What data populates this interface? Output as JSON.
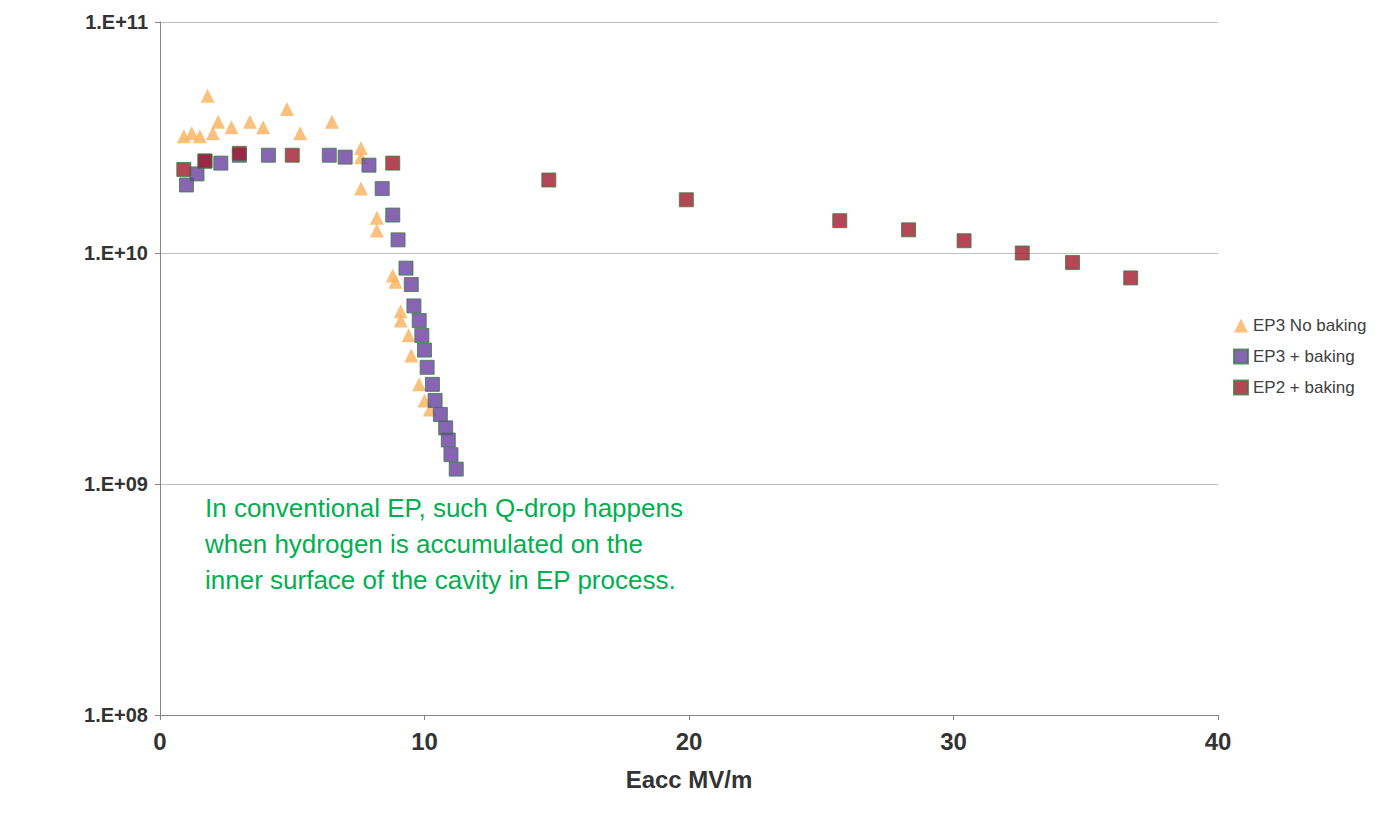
{
  "chart_data": {
    "type": "scatter",
    "x_label": "Eacc MV/m",
    "xlim": [
      0,
      40
    ],
    "xticks": [
      0,
      10,
      20,
      30,
      40
    ],
    "ylim": [
      100000000,
      100000000000
    ],
    "yticks": [
      {
        "value": 100000000,
        "label": "1.E+08"
      },
      {
        "value": 1000000000,
        "label": "1.E+09"
      },
      {
        "value": 10000000000,
        "label": "1.E+10"
      },
      {
        "value": 100000000000,
        "label": "1.E+11"
      }
    ],
    "log": "y",
    "grid": true,
    "legend": "right",
    "annotation": [
      "In conventional EP, such Q-drop happens",
      "when hydrogen is accumulated on the",
      "inner surface of the cavity in EP process."
    ],
    "series": [
      {
        "name": "EP3 No baking",
        "color": "#F9B25C",
        "marker": "triangle",
        "x": [
          0.9,
          1.2,
          1.5,
          1.8,
          2.0,
          2.2,
          2.7,
          3.4,
          3.9,
          4.8,
          5.3,
          6.5,
          7.6,
          7.6,
          7.6,
          8.2,
          8.2,
          8.8,
          8.9,
          9.1,
          9.1,
          9.4,
          9.5,
          9.8,
          10.0,
          10.2
        ],
        "values": [
          32000000000,
          33000000000,
          32000000000,
          48000000000,
          33000000000,
          37000000000,
          35000000000,
          37000000000,
          35000000000,
          42000000000,
          33000000000,
          37000000000,
          28500000000,
          26000000000,
          19000000000,
          14200000000,
          12500000000,
          8000000000,
          7500000000,
          5600000000,
          5100000000,
          4400000000,
          3600000000,
          2700000000,
          2300000000,
          2100000000
        ]
      },
      {
        "name": "EP3 + baking",
        "color": "#6A3FA0",
        "marker": "square",
        "x": [
          1.0,
          1.4,
          1.7,
          2.3,
          3.0,
          4.1,
          6.4,
          7.0,
          7.9,
          8.4,
          8.8,
          9.0,
          9.3,
          9.5,
          9.6,
          9.8,
          9.9,
          10.0,
          10.1,
          10.3,
          10.4,
          10.6,
          10.8,
          10.9,
          11.0,
          11.2
        ],
        "values": [
          19700000000,
          22000000000,
          25000000000,
          24500000000,
          26500000000,
          26500000000,
          26500000000,
          26000000000,
          24000000000,
          19000000000,
          14600000000,
          11400000000,
          8600000000,
          7300000000,
          5900000000,
          5100000000,
          4400000000,
          3800000000,
          3200000000,
          2700000000,
          2300000000,
          2000000000,
          1750000000,
          1550000000,
          1340000000,
          1160000000
        ]
      },
      {
        "name": "EP2 + baking",
        "color": "#A0192A",
        "marker": "square",
        "x": [
          0.9,
          1.7,
          3.0,
          5.0,
          8.8,
          14.7,
          19.9,
          25.7,
          28.3,
          30.4,
          32.6,
          34.5,
          36.7
        ],
        "values": [
          23000000000,
          25000000000,
          27000000000,
          26500000000,
          24500000000,
          20700000000,
          17000000000,
          13800000000,
          12600000000,
          11300000000,
          10000000000,
          9100000000,
          7800000000
        ]
      }
    ]
  }
}
